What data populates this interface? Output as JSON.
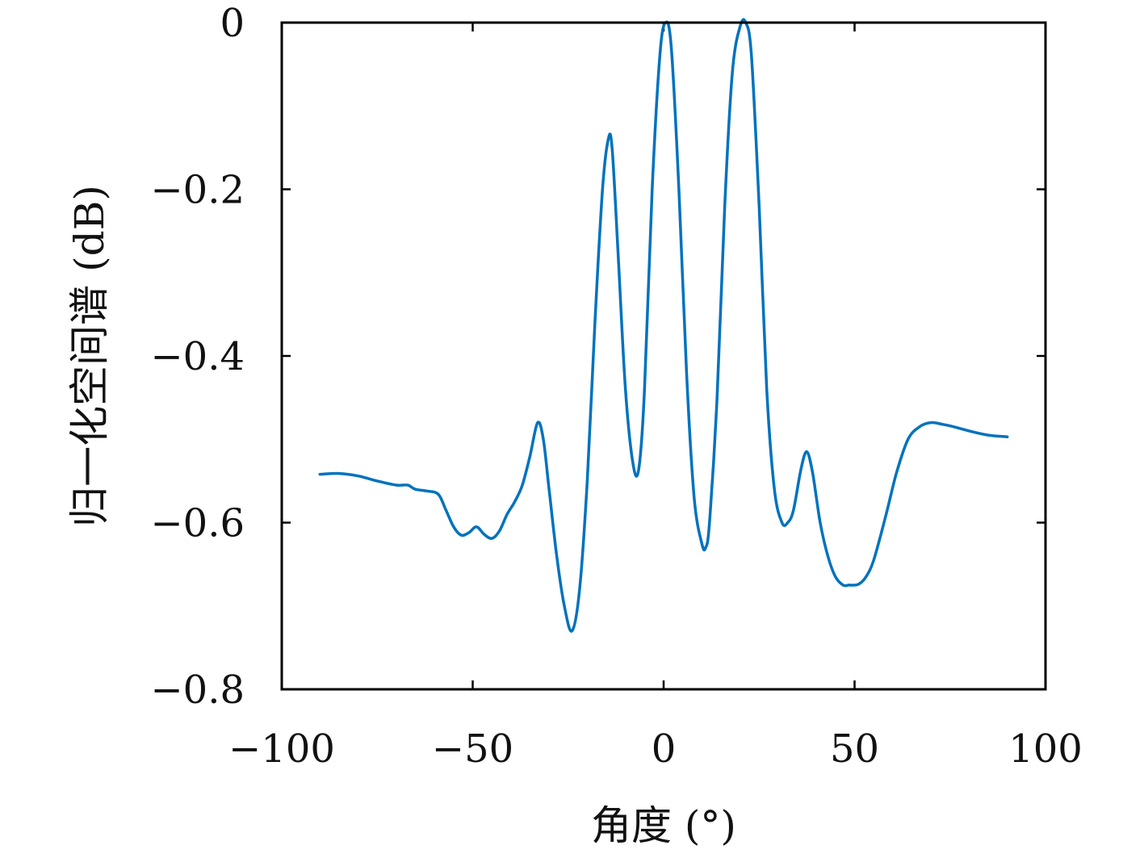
{
  "chart_data": {
    "type": "line",
    "title": "",
    "xlabel": "角度 (°)",
    "ylabel": "归一化空间谱 (dB)",
    "xlim": [
      -100,
      100
    ],
    "ylim": [
      -0.8,
      0
    ],
    "xticks": [
      -100,
      -50,
      0,
      50,
      100
    ],
    "xtick_labels": [
      "−100",
      "−50",
      "0",
      "50",
      "100"
    ],
    "yticks": [
      0,
      -0.2,
      -0.4,
      -0.6,
      -0.8
    ],
    "ytick_labels": [
      "0",
      "−0.2",
      "−0.4",
      "−0.6",
      "−0.8"
    ],
    "grid": false,
    "series": [
      {
        "color": "#0072BD",
        "x": [
          -90,
          -85,
          -80,
          -75,
          -70,
          -67,
          -65,
          -62,
          -59,
          -57,
          -55,
          -53,
          -51,
          -49,
          -47,
          -45,
          -43,
          -41,
          -39,
          -37,
          -35,
          -33,
          -31.5,
          -30,
          -28,
          -26,
          -24,
          -22,
          -20,
          -18,
          -16,
          -14.5,
          -13.5,
          -12,
          -10,
          -8,
          -6.5,
          -5,
          -3,
          -1,
          0.5,
          2,
          4,
          6,
          8,
          10,
          11,
          12,
          14,
          16,
          18,
          20,
          21.5,
          23,
          25,
          27,
          29,
          31,
          32.5,
          34,
          36,
          37.5,
          39,
          41,
          43,
          45,
          47,
          48.5,
          51,
          53,
          55,
          58,
          61,
          64,
          67,
          70,
          73,
          76,
          80,
          85,
          90
        ],
        "y": [
          -0.542,
          -0.541,
          -0.544,
          -0.55,
          -0.555,
          -0.555,
          -0.56,
          -0.562,
          -0.566,
          -0.585,
          -0.605,
          -0.615,
          -0.612,
          -0.605,
          -0.614,
          -0.619,
          -0.61,
          -0.59,
          -0.575,
          -0.555,
          -0.52,
          -0.48,
          -0.5,
          -0.56,
          -0.64,
          -0.7,
          -0.73,
          -0.68,
          -0.55,
          -0.36,
          -0.2,
          -0.14,
          -0.15,
          -0.27,
          -0.44,
          -0.53,
          -0.535,
          -0.44,
          -0.2,
          -0.04,
          0.0,
          -0.03,
          -0.2,
          -0.42,
          -0.57,
          -0.625,
          -0.63,
          -0.6,
          -0.45,
          -0.22,
          -0.06,
          -0.005,
          0.0,
          -0.04,
          -0.22,
          -0.44,
          -0.56,
          -0.6,
          -0.6,
          -0.585,
          -0.535,
          -0.515,
          -0.54,
          -0.6,
          -0.64,
          -0.665,
          -0.675,
          -0.675,
          -0.674,
          -0.665,
          -0.645,
          -0.595,
          -0.54,
          -0.5,
          -0.485,
          -0.48,
          -0.482,
          -0.485,
          -0.49,
          -0.495,
          -0.497
        ]
      }
    ]
  }
}
